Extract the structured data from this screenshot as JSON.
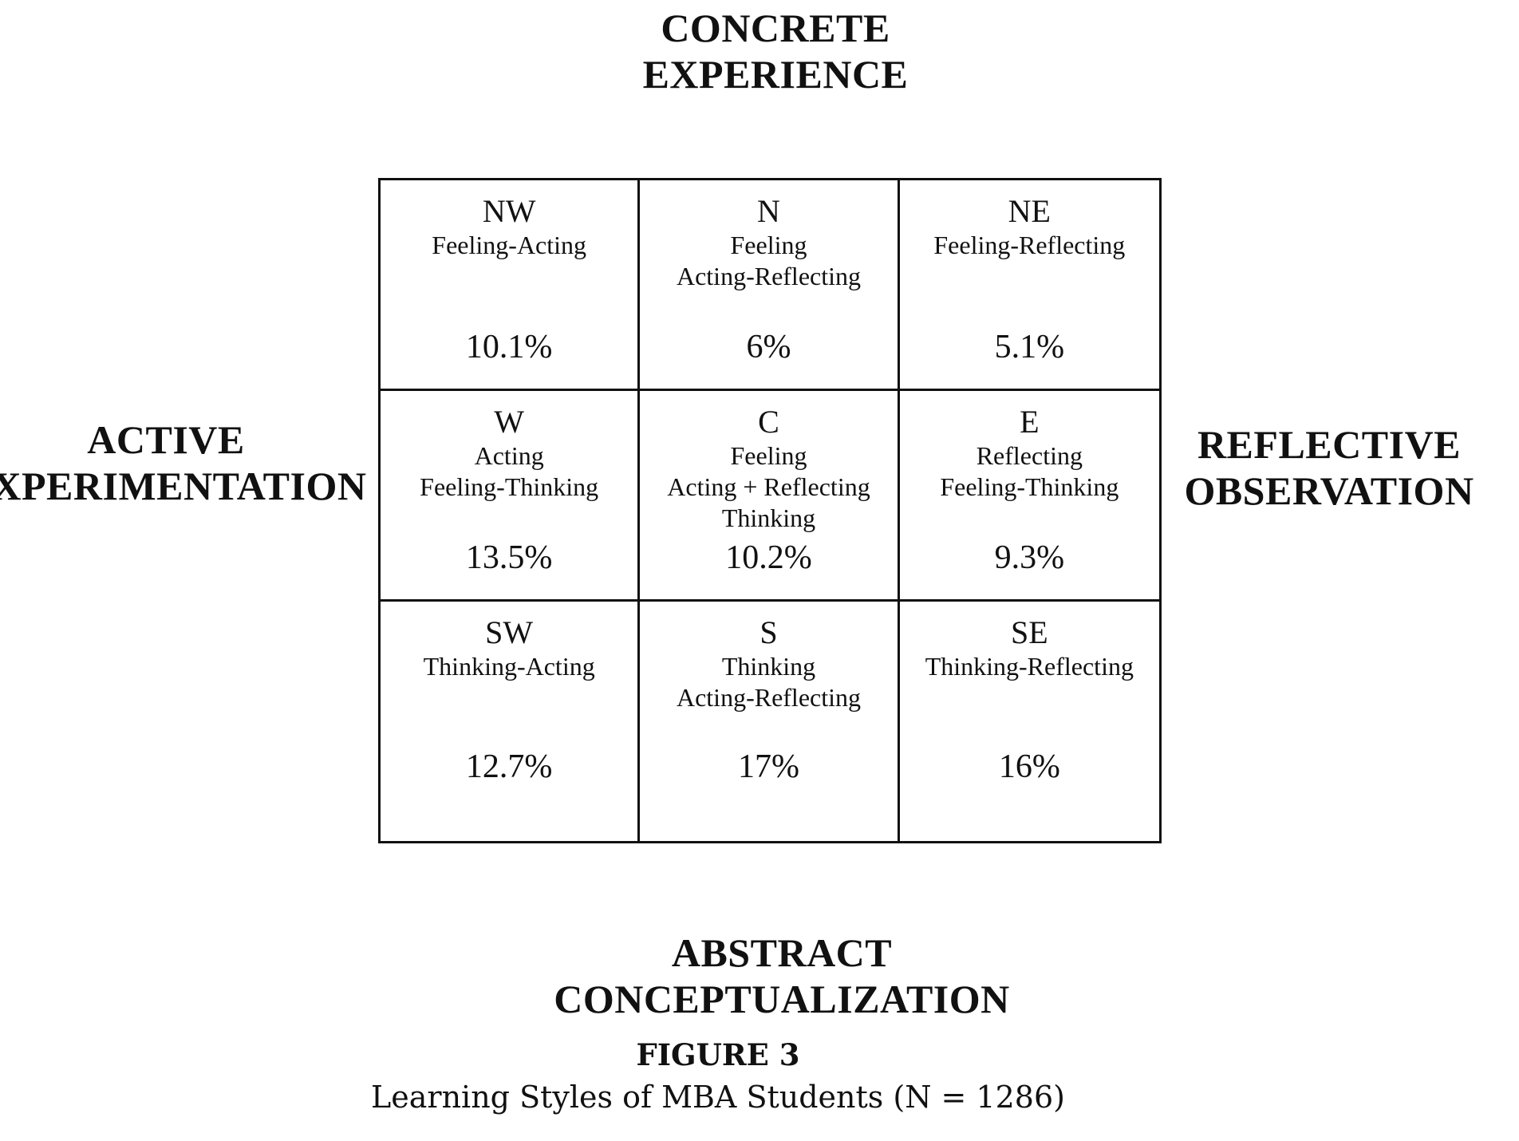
{
  "axes": {
    "top": "CONCRETE\nEXPERIENCE",
    "bottom": "ABSTRACT\nCONCEPTUALIZATION",
    "left": "ACTIVE\nEXPERIMENTATION",
    "right": "REFLECTIVE\nOBSERVATION"
  },
  "cells": [
    {
      "code": "NW",
      "description": "Feeling-Acting",
      "percent": "10.1%"
    },
    {
      "code": "N",
      "description": "Feeling\nActing-Reflecting",
      "percent": "6%"
    },
    {
      "code": "NE",
      "description": "Feeling-Reflecting",
      "percent": "5.1%"
    },
    {
      "code": "W",
      "description": "Acting\nFeeling-Thinking",
      "percent": "13.5%"
    },
    {
      "code": "C",
      "description": "Feeling\nActing + Reflecting\nThinking",
      "percent": "10.2%"
    },
    {
      "code": "E",
      "description": "Reflecting\nFeeling-Thinking",
      "percent": "9.3%"
    },
    {
      "code": "SW",
      "description": "Thinking-Acting",
      "percent": "12.7%"
    },
    {
      "code": "S",
      "description": "Thinking\nActing-Reflecting",
      "percent": "17%"
    },
    {
      "code": "SE",
      "description": "Thinking-Reflecting",
      "percent": "16%"
    }
  ],
  "caption": {
    "figure_number": "FIGURE 3",
    "title": "Learning Styles of MBA Students (N = 1286)"
  }
}
